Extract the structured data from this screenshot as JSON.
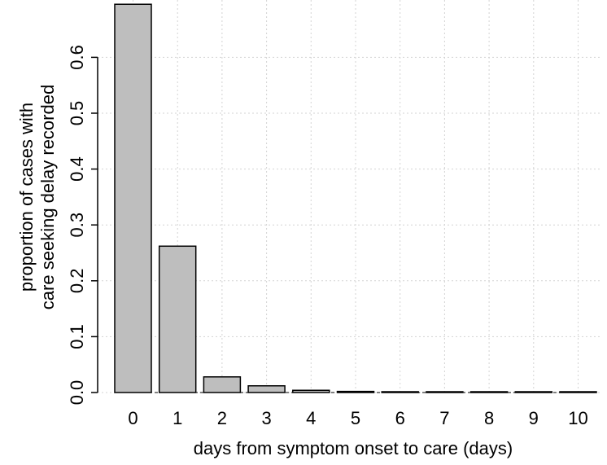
{
  "chart_data": {
    "type": "bar",
    "categories": [
      "0",
      "1",
      "2",
      "3",
      "4",
      "5",
      "6",
      "7",
      "8",
      "9",
      "10"
    ],
    "values": [
      0.695,
      0.262,
      0.028,
      0.012,
      0.004,
      0.002,
      0.001,
      0.001,
      0.001,
      0.001,
      0.001
    ],
    "title": "",
    "xlabel": "days from symptom onset to care (days)",
    "ylabel_lines": [
      "proportion of cases with",
      "care seeking delay recorded"
    ],
    "ylim": [
      0,
      0.7
    ],
    "yticks": [
      0.0,
      0.1,
      0.2,
      0.3,
      0.4,
      0.5,
      0.6
    ],
    "ytick_labels": [
      "0.0",
      "0.1",
      "0.2",
      "0.3",
      "0.4",
      "0.5",
      "0.6"
    ],
    "grid": true,
    "grid_style": "dotted",
    "bar_color": "#bebebe",
    "bar_edge_color": "#000000",
    "grid_color": "#d3d3d3"
  }
}
